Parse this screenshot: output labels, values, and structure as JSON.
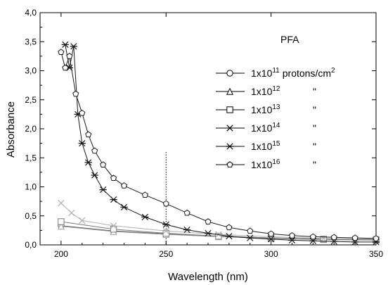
{
  "chart_data": {
    "type": "scatter",
    "title": "PFA",
    "xlabel": "Wavelength (nm)",
    "ylabel": "Absorbance",
    "xlim": [
      190,
      350
    ],
    "ylim": [
      0.0,
      4.0
    ],
    "x_ticks": [
      200,
      250,
      300,
      350
    ],
    "y_ticks": [
      0.0,
      0.5,
      1.0,
      1.5,
      2.0,
      2.5,
      3.0,
      3.5,
      4.0
    ],
    "x_tick_labels": [
      "200",
      "250",
      "300",
      "350"
    ],
    "y_tick_labels": [
      "0,0",
      "0,5",
      "1,0",
      "1,5",
      "2,0",
      "2,5",
      "3,0",
      "3,5",
      "4,0"
    ],
    "grid": false,
    "legend_position": "top-right",
    "reference_line_x": 250,
    "series": [
      {
        "label_base": "1x10",
        "label_exp": "11",
        "label_unit": "protons/cm",
        "label_unit_exp": "2",
        "marker": "circle",
        "color": "#555555",
        "x": [
          200,
          225,
          250,
          275,
          300,
          325,
          350
        ],
        "y": [
          0.33,
          0.24,
          0.19,
          0.15,
          0.12,
          0.1,
          0.09
        ]
      },
      {
        "label_base": "1x10",
        "label_exp": "12",
        "label_unit": "\"",
        "marker": "triangle",
        "color": "#9a9a9a",
        "x": [
          200,
          225,
          250,
          275,
          300,
          325,
          350
        ],
        "y": [
          0.32,
          0.23,
          0.18,
          0.14,
          0.11,
          0.09,
          0.08
        ]
      },
      {
        "label_base": "1x10",
        "label_exp": "13",
        "label_unit": "\"",
        "marker": "square",
        "color": "#7a7a7a",
        "x": [
          200,
          225,
          250,
          275,
          300,
          325,
          350
        ],
        "y": [
          0.4,
          0.27,
          0.2,
          0.15,
          0.12,
          0.1,
          0.09
        ]
      },
      {
        "label_base": "1x10",
        "label_exp": "14",
        "label_unit": "\"",
        "marker": "cross",
        "color": "#b0b0b0",
        "x": [
          200,
          205,
          210,
          225,
          250,
          275,
          300,
          325,
          350
        ],
        "y": [
          0.72,
          0.55,
          0.42,
          0.33,
          0.24,
          0.18,
          0.14,
          0.11,
          0.1
        ]
      },
      {
        "label_base": "1x10",
        "label_exp": "15",
        "label_unit": "\"",
        "marker": "star",
        "color": "#1a1a1a",
        "x": [
          202,
          204,
          206,
          208,
          210,
          213,
          216,
          220,
          225,
          230,
          240,
          250,
          260,
          270,
          280,
          290,
          300,
          310,
          320,
          330,
          340,
          350
        ],
        "y": [
          3.45,
          3.05,
          3.42,
          2.25,
          1.75,
          1.42,
          1.2,
          0.95,
          0.78,
          0.65,
          0.48,
          0.35,
          0.26,
          0.2,
          0.15,
          0.12,
          0.1,
          0.08,
          0.07,
          0.06,
          0.05,
          0.05
        ]
      },
      {
        "label_base": "1x10",
        "label_exp": "16",
        "label_unit": "\"",
        "marker": "pentagon",
        "color": "#1a1a1a",
        "x": [
          200,
          202,
          204,
          207,
          210,
          213,
          216,
          220,
          225,
          230,
          240,
          250,
          260,
          270,
          280,
          290,
          300,
          310,
          320,
          330,
          340,
          350
        ],
        "y": [
          3.32,
          3.05,
          3.25,
          2.6,
          2.27,
          1.9,
          1.62,
          1.38,
          1.15,
          1.02,
          0.86,
          0.71,
          0.55,
          0.4,
          0.3,
          0.24,
          0.19,
          0.16,
          0.14,
          0.13,
          0.12,
          0.11
        ]
      }
    ]
  }
}
